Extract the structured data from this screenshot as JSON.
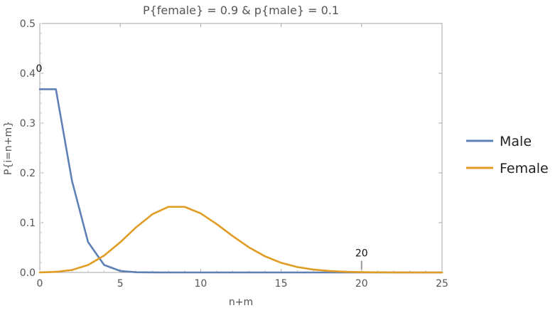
{
  "chart_data": {
    "type": "line",
    "title": "P{female} = 0.9 & p{male} = 0.1",
    "xlabel": "n+m",
    "ylabel": "P{i=n+m}",
    "xlim": [
      0,
      25
    ],
    "ylim": [
      0,
      0.5
    ],
    "xticks": [
      0,
      5,
      10,
      15,
      20,
      25
    ],
    "yticks": [
      0.0,
      0.1,
      0.2,
      0.3,
      0.4,
      0.5
    ],
    "xtick_labels": [
      "0",
      "5",
      "10",
      "15",
      "20",
      "25"
    ],
    "ytick_labels": [
      "0.0",
      "0.1",
      "0.2",
      "0.3",
      "0.4",
      "0.5"
    ],
    "grid": false,
    "legend_position": "right",
    "x": [
      0,
      1,
      2,
      3,
      4,
      5,
      6,
      7,
      8,
      9,
      10,
      11,
      12,
      13,
      14,
      15,
      16,
      17,
      18,
      19,
      20,
      21,
      22,
      23,
      24,
      25
    ],
    "series": [
      {
        "name": "Male",
        "color": "#5E81B5",
        "values": [
          0.368,
          0.368,
          0.184,
          0.061,
          0.015,
          0.003,
          0.0005,
          0.0001,
          0,
          0,
          0,
          0,
          0,
          0,
          0,
          0,
          0,
          0,
          0,
          0,
          0,
          0,
          0,
          0,
          0,
          0
        ]
      },
      {
        "name": "Female",
        "color": "#E19C24",
        "values": [
          0.0001,
          0.0011,
          0.005,
          0.015,
          0.034,
          0.0607,
          0.0911,
          0.117,
          0.1318,
          0.1318,
          0.1186,
          0.097,
          0.0728,
          0.0504,
          0.0324,
          0.0194,
          0.0109,
          0.0058,
          0.0029,
          0.0014,
          0.0006,
          0.0003,
          0.0001,
          0,
          0,
          0
        ]
      }
    ],
    "annotations": [
      {
        "text": "20",
        "x": 20,
        "y": 0.0006,
        "color": "#999999"
      },
      {
        "text": "0",
        "x": 0,
        "y": 0.41
      }
    ]
  }
}
